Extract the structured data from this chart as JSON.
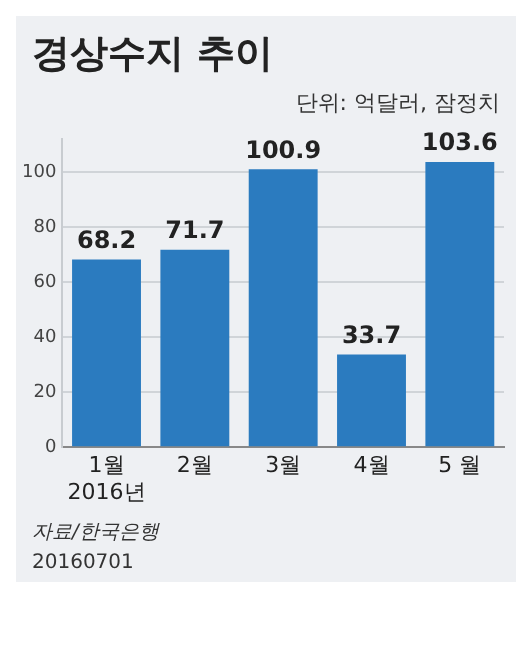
{
  "chart_data": {
    "type": "bar",
    "title": "경상수지 추이",
    "subtitle": "단위: 억달러, 잠정치",
    "categories": [
      "1월\n2016년",
      "2월",
      "3월",
      "4월",
      "5 월"
    ],
    "values": [
      68.2,
      71.7,
      100.9,
      33.7,
      103.6
    ],
    "color": "#2b7bbf",
    "ylim": [
      0,
      112
    ],
    "yticks": [
      0,
      20,
      40,
      60,
      80,
      100
    ],
    "grid": "y",
    "legend": false,
    "data_labels": true,
    "annotations": [
      "자료/한국은행",
      "20160701"
    ]
  }
}
